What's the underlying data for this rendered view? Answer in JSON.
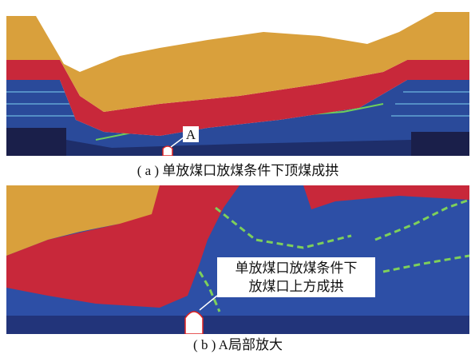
{
  "figure": {
    "panel_a": {
      "marker": "A",
      "caption": "( a ) 单放煤口放煤条件下顶煤成拱"
    },
    "panel_b": {
      "annotation": [
        "单放煤口放煤条件下",
        "放煤口上方成拱"
      ],
      "caption": "( b ) A局部放大"
    }
  }
}
